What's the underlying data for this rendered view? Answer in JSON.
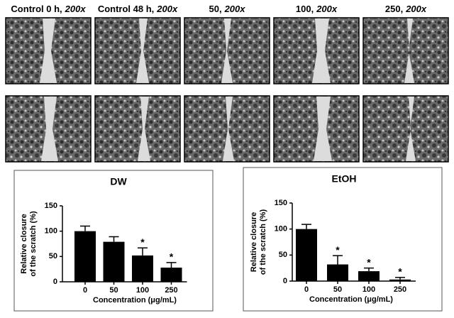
{
  "headers": [
    {
      "label": "Control 0 h,",
      "mag": "200x"
    },
    {
      "label": "Control 48 h,",
      "mag": "200x"
    },
    {
      "label": "50,",
      "mag": "200x"
    },
    {
      "label": "100,",
      "mag": "200x"
    },
    {
      "label": "250,",
      "mag": "200x"
    }
  ],
  "chart_data": [
    {
      "type": "bar",
      "title": "DW",
      "x_label": "Concentration (μg/mL)",
      "y_label": [
        "Relative closure",
        "of the scratch (%)"
      ],
      "categories": [
        "0",
        "50",
        "100",
        "250"
      ],
      "values": [
        100,
        79,
        52,
        28
      ],
      "errors": [
        10,
        10,
        15,
        10
      ],
      "significance": [
        null,
        null,
        "*",
        "*"
      ],
      "color": "#000000",
      "ylim": [
        0,
        150
      ],
      "yticks": [
        0,
        50,
        100,
        150
      ]
    },
    {
      "type": "bar",
      "title": "EtOH",
      "x_label": "Concentration (μg/mL)",
      "y_label": [
        "Relative closure",
        "of the scratch (%)"
      ],
      "categories": [
        "0",
        "50",
        "100",
        "250"
      ],
      "values": [
        100,
        32,
        19,
        3
      ],
      "errors": [
        9,
        17,
        6,
        4
      ],
      "significance": [
        null,
        "*",
        "*",
        "*"
      ],
      "color": "#000000",
      "ylim": [
        0,
        150
      ],
      "yticks": [
        0,
        50,
        100,
        150
      ]
    }
  ]
}
